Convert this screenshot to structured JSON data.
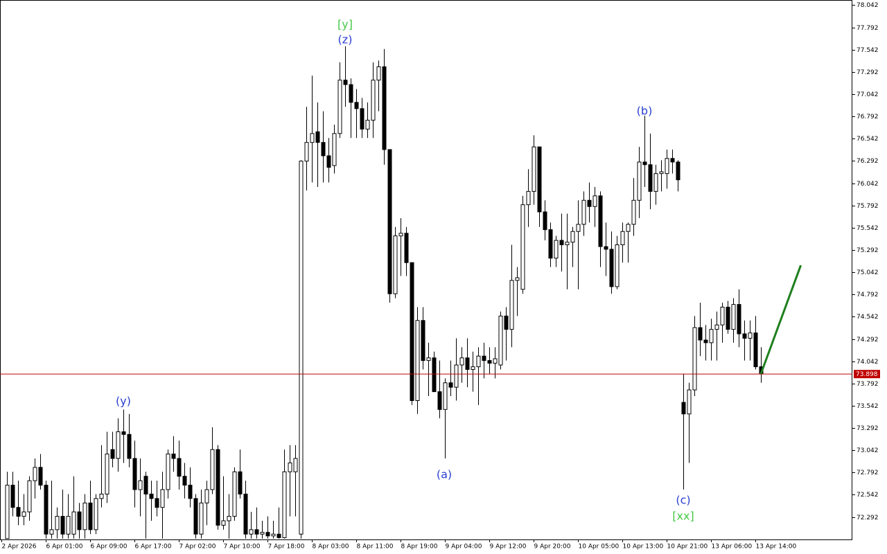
{
  "chart_data": {
    "type": "candlestick",
    "ylim": [
      72.04,
      78.1
    ],
    "yticks": [
      78.042,
      77.792,
      77.542,
      77.292,
      77.042,
      76.792,
      76.542,
      76.292,
      76.042,
      75.792,
      75.542,
      75.292,
      75.042,
      74.792,
      74.542,
      74.292,
      74.042,
      73.792,
      73.542,
      73.292,
      73.042,
      72.792,
      72.542,
      72.292
    ],
    "xlim": [
      -1.25,
      152.5
    ],
    "xticks": [
      {
        "value": -1,
        "label": "2 Apr 2026"
      },
      {
        "value": 7,
        "label": "6 Apr 01:00"
      },
      {
        "value": 15,
        "label": "6 Apr 09:00"
      },
      {
        "value": 23,
        "label": "6 Apr 17:00"
      },
      {
        "value": 31,
        "label": "7 Apr 02:00"
      },
      {
        "value": 39,
        "label": "7 Apr 10:00"
      },
      {
        "value": 47,
        "label": "7 Apr 18:00"
      },
      {
        "value": 55,
        "label": "8 Apr 03:00"
      },
      {
        "value": 63,
        "label": "8 Apr 11:00"
      },
      {
        "value": 71,
        "label": "8 Apr 19:00"
      },
      {
        "value": 79,
        "label": "9 Apr 04:00"
      },
      {
        "value": 87,
        "label": "9 Apr 12:00"
      },
      {
        "value": 95,
        "label": "9 Apr 20:00"
      },
      {
        "value": 103,
        "label": "10 Apr 05:00"
      },
      {
        "value": 111,
        "label": "10 Apr 13:00"
      },
      {
        "value": 119,
        "label": "10 Apr 21:00"
      },
      {
        "value": 127,
        "label": "13 Apr 06:00"
      },
      {
        "value": 135,
        "label": "13 Apr 14:00"
      }
    ],
    "open": [
      72.05,
      72.65,
      72.4,
      72.3,
      72.35,
      72.7,
      72.85,
      72.65,
      72.1,
      72.15,
      72.3,
      72.1,
      72.1,
      72.35,
      72.15,
      72.45,
      72.15,
      72.5,
      72.55,
      73.05,
      72.95,
      73.25,
      73.22,
      72.95,
      72.6,
      72.75,
      72.55,
      72.5,
      72.4,
      72.6,
      73.0,
      72.95,
      72.75,
      72.65,
      72.5,
      72.1,
      72.45,
      72.6,
      73.05,
      72.2,
      72.25,
      72.3,
      72.8,
      72.55,
      72.1,
      72.15,
      72.1,
      72.12,
      72.08,
      72.1,
      72.06,
      72.8,
      72.8,
      72.1,
      76.29,
      76.5,
      76.62,
      76.5,
      76.35,
      76.24,
      76.6,
      77.2,
      77.15,
      76.95,
      76.88,
      76.65,
      76.75,
      77.2,
      77.35,
      76.42,
      74.8,
      75.45,
      75.48,
      75.15,
      73.6,
      74.5,
      74.05,
      74.08,
      73.7,
      73.5,
      73.8,
      73.75,
      74.0,
      74.08,
      73.95,
      73.98,
      74.1,
      74.05,
      74.02,
      74.0,
      74.55,
      74.4,
      74.95,
      74.85,
      75.8,
      75.95,
      76.45,
      75.72,
      75.52,
      75.2,
      75.4,
      75.35,
      75.38,
      75.5,
      75.58,
      75.85,
      75.78,
      75.9,
      75.33,
      75.3,
      74.88,
      75.35,
      75.5,
      75.58,
      75.85,
      76.28,
      76.25,
      75.95,
      76.15,
      76.15,
      76.32,
      76.28,
      73.58,
      73.45,
      73.72,
      74.42,
      74.28,
      74.25,
      74.4,
      74.45,
      74.65,
      74.4,
      74.68,
      74.35,
      74.3,
      74.36,
      73.98
    ],
    "high": [
      72.8,
      72.8,
      72.7,
      72.55,
      72.75,
      72.95,
      73.0,
      72.7,
      72.7,
      72.4,
      72.6,
      72.55,
      72.75,
      72.45,
      72.55,
      72.7,
      72.55,
      73.1,
      73.25,
      73.25,
      73.4,
      73.5,
      73.45,
      73.15,
      72.95,
      72.8,
      72.7,
      72.7,
      72.8,
      73.05,
      73.2,
      73.15,
      72.9,
      72.85,
      72.55,
      72.6,
      72.7,
      73.3,
      73.1,
      72.75,
      72.55,
      72.85,
      73.05,
      72.7,
      72.35,
      72.4,
      72.25,
      72.3,
      72.25,
      72.4,
      73.05,
      73.1,
      73.1,
      76.3,
      76.9,
      77.25,
      76.95,
      76.85,
      76.55,
      76.7,
      77.4,
      77.58,
      77.22,
      77.1,
      77.0,
      76.95,
      77.4,
      77.42,
      77.55,
      76.42,
      75.55,
      75.65,
      75.55,
      75.15,
      74.65,
      74.65,
      74.25,
      74.15,
      74.05,
      73.85,
      74.05,
      74.3,
      74.2,
      74.3,
      74.15,
      74.2,
      74.25,
      74.2,
      74.2,
      74.6,
      74.65,
      75.35,
      75.1,
      75.9,
      76.2,
      76.58,
      76.45,
      75.85,
      75.6,
      75.45,
      75.7,
      75.7,
      75.55,
      75.85,
      75.95,
      76.05,
      76.0,
      75.95,
      75.6,
      75.5,
      75.45,
      75.6,
      75.6,
      76.1,
      76.45,
      76.8,
      76.6,
      76.25,
      76.3,
      76.42,
      76.42,
      76.3,
      73.9,
      73.8,
      74.55,
      74.7,
      74.45,
      74.52,
      74.6,
      74.7,
      74.72,
      74.75,
      74.85,
      74.5,
      74.5,
      74.55,
      74.2
    ],
    "low": [
      72.05,
      72.3,
      72.2,
      72.2,
      72.25,
      72.5,
      72.6,
      72.05,
      72.05,
      72.05,
      72.05,
      72.05,
      72.05,
      72.05,
      72.05,
      72.1,
      72.1,
      72.4,
      72.45,
      72.85,
      72.8,
      72.9,
      72.85,
      72.4,
      72.3,
      72.05,
      72.25,
      72.3,
      72.05,
      72.5,
      72.8,
      72.6,
      72.5,
      72.4,
      72.05,
      72.05,
      72.2,
      72.55,
      72.15,
      72.15,
      72.05,
      72.25,
      72.5,
      72.05,
      72.05,
      72.05,
      72.05,
      72.05,
      72.05,
      72.05,
      72.05,
      72.3,
      72.3,
      72.05,
      75.96,
      76.05,
      76.0,
      76.05,
      76.05,
      76.15,
      76.55,
      76.9,
      76.55,
      76.55,
      76.55,
      76.55,
      76.55,
      76.85,
      76.25,
      74.7,
      74.75,
      75.0,
      75.0,
      73.55,
      73.45,
      73.95,
      73.65,
      73.7,
      73.4,
      72.95,
      73.65,
      73.6,
      73.8,
      73.75,
      73.7,
      73.55,
      73.85,
      73.9,
      73.85,
      73.95,
      74.05,
      74.2,
      74.55,
      74.8,
      75.55,
      75.8,
      75.55,
      75.4,
      75.1,
      75.1,
      75.05,
      74.85,
      75.1,
      74.85,
      75.45,
      75.6,
      75.55,
      75.1,
      75.0,
      74.8,
      74.85,
      75.15,
      75.15,
      75.45,
      75.65,
      76.0,
      75.75,
      75.8,
      75.95,
      75.98,
      76.15,
      75.95,
      72.6,
      72.9,
      73.65,
      74.1,
      74.05,
      74.05,
      74.05,
      74.25,
      74.35,
      74.25,
      74.2,
      74.05,
      74.05,
      73.95,
      73.8
    ],
    "close": [
      72.65,
      72.4,
      72.3,
      72.35,
      72.7,
      72.85,
      72.65,
      72.1,
      72.15,
      72.3,
      72.1,
      72.3,
      72.35,
      72.15,
      72.45,
      72.15,
      72.5,
      72.55,
      73.0,
      72.95,
      73.25,
      73.22,
      72.95,
      72.6,
      72.7,
      72.55,
      72.5,
      72.4,
      72.6,
      73.0,
      72.95,
      72.75,
      72.65,
      72.5,
      72.1,
      72.45,
      72.6,
      73.05,
      72.2,
      72.25,
      72.3,
      72.8,
      72.55,
      72.1,
      72.15,
      72.1,
      72.12,
      72.08,
      72.1,
      72.06,
      72.8,
      72.9,
      72.95,
      76.29,
      76.5,
      76.6,
      76.5,
      76.35,
      76.22,
      76.6,
      77.2,
      77.15,
      76.95,
      76.88,
      76.65,
      76.75,
      77.2,
      77.35,
      76.42,
      74.8,
      75.45,
      75.48,
      75.15,
      73.6,
      74.5,
      74.05,
      74.08,
      73.7,
      73.5,
      73.8,
      73.75,
      74.0,
      74.08,
      73.95,
      73.98,
      74.1,
      74.05,
      74.02,
      74.07,
      74.55,
      74.4,
      74.95,
      74.98,
      75.8,
      75.95,
      76.45,
      75.72,
      75.52,
      75.2,
      75.4,
      75.35,
      75.38,
      75.5,
      75.58,
      75.85,
      75.78,
      75.9,
      75.33,
      75.3,
      74.88,
      75.35,
      75.5,
      75.58,
      75.85,
      76.28,
      76.25,
      75.95,
      76.15,
      76.17,
      76.32,
      76.28,
      76.08,
      73.45,
      73.72,
      74.42,
      74.28,
      74.25,
      74.4,
      74.45,
      74.65,
      74.4,
      74.68,
      74.35,
      74.3,
      74.36,
      73.98,
      73.9
    ],
    "current_price": 73.898,
    "arrow": {
      "x": [
        136,
        143.2
      ],
      "y": [
        73.9,
        75.12
      ],
      "color": "#1e7f1e"
    },
    "annotations": [
      {
        "text": "[y]",
        "color": "#46c846"
      },
      {
        "text": "(z)",
        "color": "#2a3ed0"
      },
      {
        "text": "(y)",
        "color": "#2a3ed0"
      },
      {
        "text": "(a)",
        "color": "#2a3ed0"
      },
      {
        "text": "(b)",
        "color": "#2a3ed0"
      },
      {
        "text": "(c)",
        "color": "#2a3ed0"
      },
      {
        "text": "[xx]",
        "color": "#46c846"
      }
    ]
  }
}
